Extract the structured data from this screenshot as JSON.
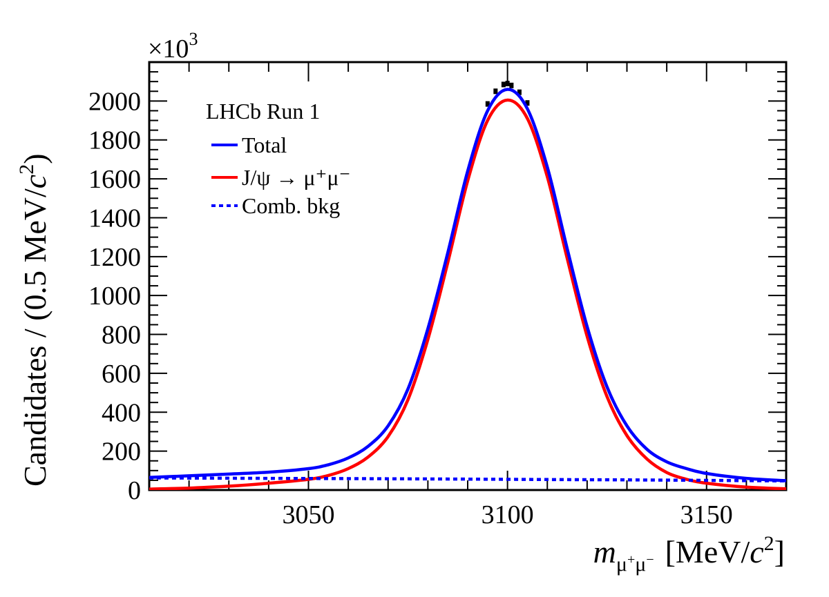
{
  "chart_data": {
    "type": "line",
    "title": "",
    "xlabel": {
      "symbol": "m",
      "subscript": [
        "μ",
        "+",
        "μ",
        "−"
      ],
      "unit_open": "[MeV/",
      "unit_c": "c",
      "unit_exp": "2",
      "unit_close": "]"
    },
    "ylabel": {
      "prefix": "Candidates / (0.5 MeV/",
      "c": "c",
      "exp": "2",
      "suffix": ")"
    },
    "y_multiplier": {
      "base": "×10",
      "exp": "3"
    },
    "xlim": [
      3010,
      3170
    ],
    "ylim": [
      0,
      2200
    ],
    "x_ticks": [
      3050,
      3100,
      3150
    ],
    "x_tick_labels": [
      "3050",
      "3100",
      "3150"
    ],
    "y_ticks": [
      0,
      200,
      400,
      600,
      800,
      1000,
      1200,
      1400,
      1600,
      1800,
      2000
    ],
    "y_tick_labels": [
      "0",
      "200",
      "400",
      "600",
      "800",
      "1000",
      "1200",
      "1400",
      "1600",
      "1800",
      "2000"
    ],
    "legend": {
      "position": "top-left",
      "header": "LHCb Run 1",
      "entries": [
        {
          "label": "Total",
          "color": "#0000ff",
          "style": "solid"
        },
        {
          "label": "J/ψ → μ⁺μ⁻",
          "color": "#ff0000",
          "style": "solid"
        },
        {
          "label": "Comb. bkg",
          "color": "#0000ff",
          "style": "dotted"
        }
      ]
    },
    "series": [
      {
        "name": "Total",
        "color": "#0000ff",
        "style": "solid",
        "x": [
          3010,
          3020,
          3030,
          3040,
          3050,
          3055,
          3060,
          3065,
          3070,
          3075,
          3080,
          3085,
          3090,
          3095,
          3100,
          3105,
          3110,
          3115,
          3120,
          3125,
          3130,
          3135,
          3140,
          3145,
          3150,
          3160,
          3170
        ],
        "y": [
          65,
          73,
          82,
          92,
          110,
          130,
          165,
          225,
          330,
          520,
          830,
          1220,
          1640,
          1950,
          2060,
          1960,
          1660,
          1240,
          840,
          530,
          330,
          210,
          145,
          110,
          85,
          60,
          48
        ]
      },
      {
        "name": "J/ψ → μ⁺μ⁻",
        "color": "#ff0000",
        "style": "solid",
        "x": [
          3010,
          3020,
          3030,
          3040,
          3050,
          3055,
          3060,
          3065,
          3070,
          3075,
          3080,
          3085,
          3090,
          3095,
          3100,
          3105,
          3110,
          3115,
          3120,
          3125,
          3130,
          3135,
          3140,
          3145,
          3150,
          3160,
          3170
        ],
        "y": [
          5,
          10,
          20,
          35,
          55,
          75,
          110,
          170,
          275,
          465,
          775,
          1170,
          1590,
          1900,
          2005,
          1910,
          1610,
          1190,
          790,
          480,
          280,
          160,
          90,
          55,
          35,
          15,
          6
        ]
      },
      {
        "name": "Comb. bkg",
        "color": "#0000ff",
        "style": "dotted",
        "x": [
          3010,
          3040,
          3070,
          3100,
          3130,
          3170
        ],
        "y": [
          62,
          60,
          58,
          55,
          52,
          47
        ]
      },
      {
        "name": "Data",
        "color": "#000000",
        "style": "points",
        "x": [
          3095,
          3097,
          3099,
          3100,
          3101,
          3103,
          3105
        ],
        "y": [
          1985,
          2050,
          2085,
          2090,
          2080,
          2045,
          1990
        ]
      }
    ]
  }
}
